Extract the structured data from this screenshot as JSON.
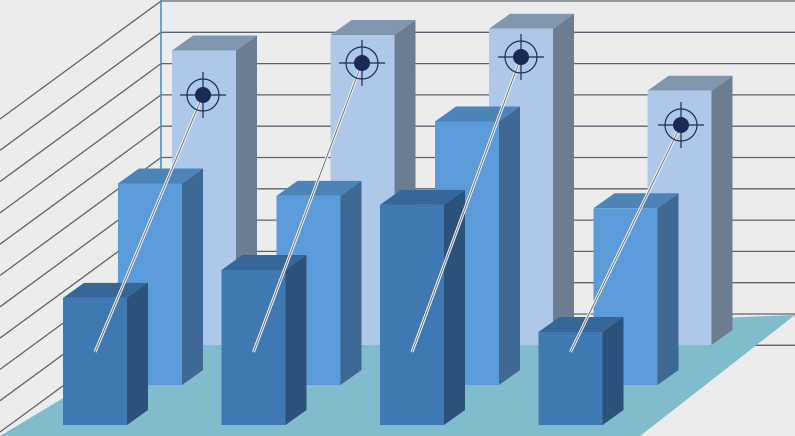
{
  "chart_data": {
    "type": "bar",
    "style": "3d-grouped",
    "title": "",
    "xlabel": "",
    "ylabel": "",
    "categories": [
      "",
      "",
      "",
      ""
    ],
    "series": [
      {
        "values": [
          9.5,
          10.0,
          10.2,
          8.2
        ],
        "color": "#aec8ea"
      },
      {
        "values": [
          6.5,
          6.1,
          8.5,
          5.7
        ],
        "color": "#5b9bd9"
      },
      {
        "values": [
          4.1,
          5.0,
          7.1,
          3.0
        ],
        "color": "#3f79b3"
      }
    ],
    "ylim": [
      0,
      11
    ],
    "grid": true,
    "legend": "none",
    "markers": "target-icon"
  },
  "colors": {
    "background": "#ececec",
    "floor": "#7fbccc",
    "grid": "#5a6470",
    "target": "#1a2a55"
  }
}
